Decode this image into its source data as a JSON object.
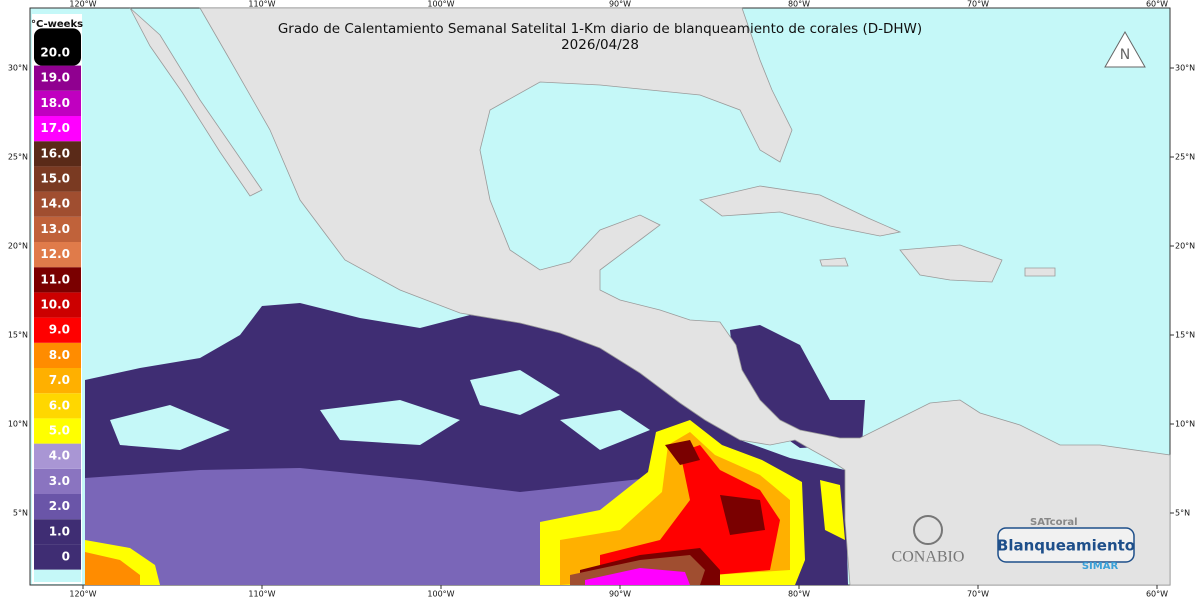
{
  "title": "Grado de Calentamiento Semanal Satelital 1-Km diario de blanqueamiento de corales (D-DHW)",
  "date": "2026/04/28",
  "legend": {
    "unit": "°C-weeks",
    "ticks": [
      0,
      {
        "value": 1,
        "label": "1.0"
      },
      {
        "value": 2,
        "label": "2.0"
      },
      {
        "value": 3,
        "label": "3.0"
      },
      {
        "value": 4,
        "label": "4.0"
      },
      {
        "value": 5,
        "label": "5.0"
      },
      {
        "value": 6,
        "label": "6.0"
      },
      {
        "value": 7,
        "label": "7.0"
      },
      {
        "value": 8,
        "label": "8.0"
      },
      {
        "value": 9,
        "label": "9.0"
      },
      {
        "value": 10,
        "label": "10.0"
      },
      {
        "value": 11,
        "label": "11.0"
      },
      {
        "value": 12,
        "label": "12.0"
      },
      {
        "value": 13,
        "label": "13.0"
      },
      {
        "value": 14,
        "label": "14.0"
      },
      {
        "value": 15,
        "label": "15.0"
      },
      {
        "value": 16,
        "label": "16.0"
      },
      {
        "value": 17,
        "label": "17.0"
      },
      {
        "value": 18,
        "label": "18.0"
      },
      {
        "value": 19,
        "label": "19.0"
      },
      {
        "value": 20,
        "label": "20.0"
      }
    ],
    "colors": [
      "#3f2d73",
      "#3f2d73",
      "#6a55a8",
      "#8a74c0",
      "#a996d4",
      "#ffff00",
      "#ffd700",
      "#ffb000",
      "#ff8c00",
      "#ff0000",
      "#cc0000",
      "#7a0000",
      "#e07b4a",
      "#c0623a",
      "#a04e30",
      "#7a3a22",
      "#5a2a18",
      "#ff00ff",
      "#c000c0",
      "#900090",
      "#000000"
    ],
    "below_color": "#c5f8f8"
  },
  "lon_ticks": [
    {
      "value": -120,
      "label": "120°W"
    },
    {
      "value": -110,
      "label": "110°W"
    },
    {
      "value": -100,
      "label": "100°W"
    },
    {
      "value": -90,
      "label": "90°W"
    },
    {
      "value": -80,
      "label": "80°W"
    },
    {
      "value": -70,
      "label": "70°W"
    },
    {
      "value": -60,
      "label": "60°W"
    }
  ],
  "lat_ticks": [
    {
      "value": 5,
      "label": "5°N"
    },
    {
      "value": 10,
      "label": "10°N"
    },
    {
      "value": 15,
      "label": "15°N"
    },
    {
      "value": 20,
      "label": "20°N"
    },
    {
      "value": 25,
      "label": "25°N"
    },
    {
      "value": 30,
      "label": "30°N"
    }
  ],
  "logos": {
    "conabio": "CONABIO",
    "satcoral": "SATcoral",
    "blanqueamiento": "Blanqueamiento",
    "simar": "SIMAR"
  }
}
